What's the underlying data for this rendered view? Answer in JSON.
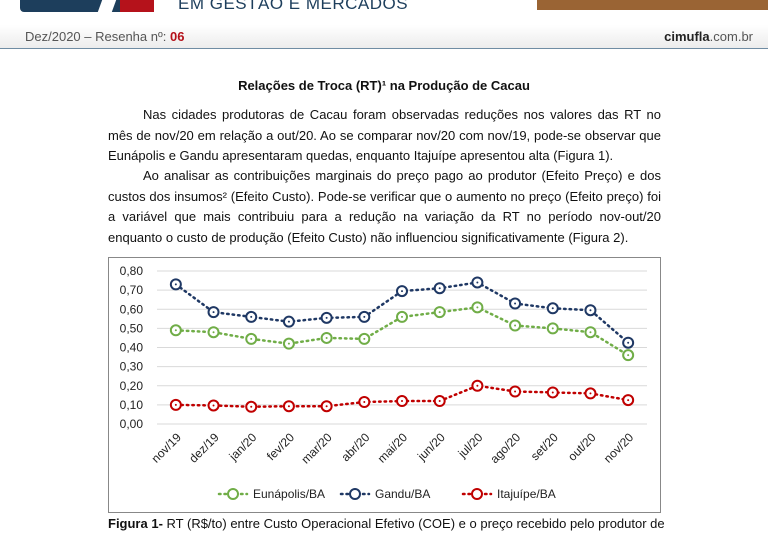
{
  "header": {
    "brand_subtitle": "EM GESTÃO E MERCADOS",
    "issue_prefix": "Dez/2020 – Resenha nº: ",
    "issue_number": "06",
    "site_bold": "cimufla",
    "site_rest": ".com.br"
  },
  "article": {
    "title": "Relações de Troca (RT)¹ na Produção de Cacau",
    "p1": "Nas cidades produtoras de Cacau foram observadas reduções nos valores das RT no mês de nov/20 em relação a out/20. Ao se comparar nov/20 com nov/19, pode-se observar que Eunápolis e Gandu apresentaram quedas, enquanto Itajuípe apresentou alta (Figura 1).",
    "p2": "Ao analisar as contribuições marginais do preço pago ao produtor (Efeito Preço) e dos custos dos insumos² (Efeito Custo). Pode-se verificar que o aumento no preço (Efeito preço) foi a variável que mais contribuiu para a redução na variação da RT no período nov-out/20 enquanto o custo de produção (Efeito Custo) não influenciou significativamente (Figura 2).",
    "caption_label": "Figura 1-",
    "caption_text": " RT (R$/to) entre Custo Operacional Efetivo (COE) e o preço recebido pelo produtor de"
  },
  "chart_data": {
    "type": "line",
    "categories": [
      "nov/19",
      "dez/19",
      "jan/20",
      "fev/20",
      "mar/20",
      "abr/20",
      "mai/20",
      "jun/20",
      "jul/20",
      "ago/20",
      "set/20",
      "out/20",
      "nov/20"
    ],
    "ylim": [
      0,
      0.8
    ],
    "yticks": [
      "0,00",
      "0,10",
      "0,20",
      "0,30",
      "0,40",
      "0,50",
      "0,60",
      "0,70",
      "0,80"
    ],
    "grid": true,
    "legend": "bottom",
    "series": [
      {
        "name": "Eunápolis/BA",
        "color": "#70ad47",
        "values": [
          0.49,
          0.48,
          0.445,
          0.42,
          0.45,
          0.445,
          0.56,
          0.585,
          0.61,
          0.515,
          0.5,
          0.48,
          0.36
        ]
      },
      {
        "name": "Gandu/BA",
        "color": "#1f3864",
        "values": [
          0.73,
          0.585,
          0.56,
          0.535,
          0.555,
          0.56,
          0.695,
          0.71,
          0.74,
          0.63,
          0.605,
          0.595,
          0.425
        ]
      },
      {
        "name": "Itajuípe/BA",
        "color": "#c00000",
        "values": [
          0.1,
          0.097,
          0.09,
          0.093,
          0.093,
          0.115,
          0.12,
          0.12,
          0.2,
          0.17,
          0.165,
          0.16,
          0.125
        ]
      }
    ]
  }
}
